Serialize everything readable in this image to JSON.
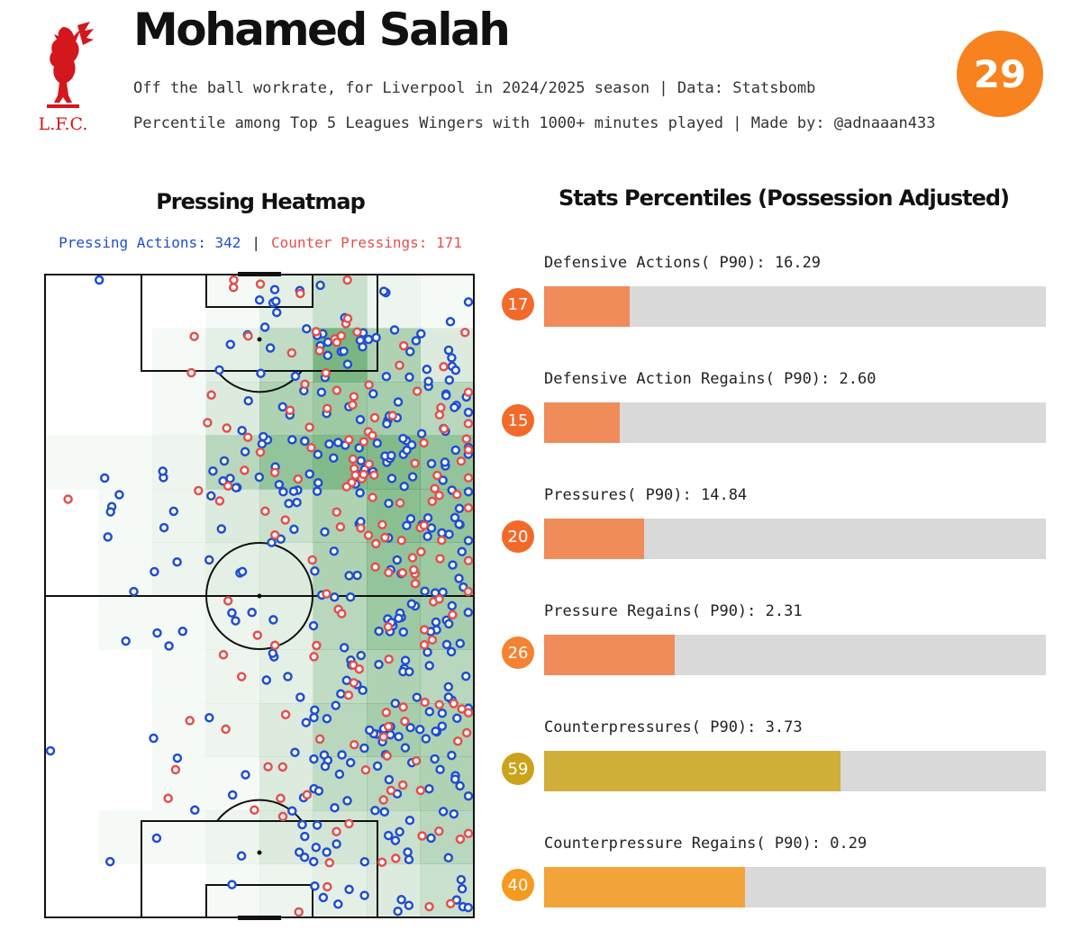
{
  "header": {
    "club_crest_text": "L.F.C.",
    "player_name": "Mohamed Salah",
    "subtitle_1": "Off the ball workrate, for Liverpool in 2024/2025 season | Data: Statsbomb",
    "subtitle_2": "Percentile among Top 5 Leagues Wingers with 1000+ minutes played | Made by: @adnaaan433",
    "overall_score": "29",
    "overall_color": "#f7821e"
  },
  "heatmap": {
    "title": "Pressing Heatmap",
    "legend_pressing": "Pressing Actions: 342",
    "legend_separator": "|",
    "legend_counter": "Counter Pressings: 171",
    "pressing_color": "#1f4fd0",
    "counter_color": "#e2504e",
    "heat_color": "#2e8b3a"
  },
  "stats": {
    "title": "Stats Percentiles (Possession Adjusted)",
    "items": [
      {
        "label": "Defensive Actions( P90): 16.29",
        "percentile": 17,
        "percentile_text": "17",
        "bar_color": "#f08c5a",
        "badge_color": "#f26a2a"
      },
      {
        "label": "Defensive Action Regains( P90): 2.60",
        "percentile": 15,
        "percentile_text": "15",
        "bar_color": "#f08c5a",
        "badge_color": "#f26a2a"
      },
      {
        "label": "Pressures( P90): 14.84",
        "percentile": 20,
        "percentile_text": "20",
        "bar_color": "#f08c5a",
        "badge_color": "#f26a2a"
      },
      {
        "label": "Pressure Regains( P90): 2.31",
        "percentile": 26,
        "percentile_text": "26",
        "bar_color": "#f08c5a",
        "badge_color": "#f48230"
      },
      {
        "label": "Counterpressures( P90): 3.73",
        "percentile": 59,
        "percentile_text": "59",
        "bar_color": "#cfae3a",
        "badge_color": "#caa31a"
      },
      {
        "label": "Counterpressure Regains( P90): 0.29",
        "percentile": 40,
        "percentile_text": "40",
        "bar_color": "#f2a43a",
        "badge_color": "#f59a1e"
      }
    ]
  },
  "chart_data": [
    {
      "type": "bar",
      "orientation": "horizontal",
      "title": "Stats Percentiles (Possession Adjusted)",
      "categories": [
        "Defensive Actions( P90)",
        "Defensive Action Regains( P90)",
        "Pressures( P90)",
        "Pressure Regains( P90)",
        "Counterpressures( P90)",
        "Counterpressure Regains( P90)"
      ],
      "raw_values": [
        16.29,
        2.6,
        14.84,
        2.31,
        3.73,
        0.29
      ],
      "values": [
        17,
        15,
        20,
        26,
        59,
        40
      ],
      "xlim": [
        0,
        100
      ]
    },
    {
      "type": "heatmap",
      "title": "Pressing Heatmap",
      "description_axes": "pitch length 0-120 (bottom to top), width 0-80 (left to right)",
      "series": [
        {
          "name": "Pressing Actions",
          "count": 342
        },
        {
          "name": "Counter Pressings",
          "count": 171
        }
      ],
      "grid_cols": 8,
      "grid_rows": 12,
      "intensity": [
        [
          0.0,
          0.0,
          0.0,
          0.05,
          0.15,
          0.3,
          0.1,
          0.05
        ],
        [
          0.0,
          0.0,
          0.05,
          0.15,
          0.35,
          0.75,
          0.45,
          0.2
        ],
        [
          0.0,
          0.0,
          0.05,
          0.2,
          0.45,
          0.55,
          0.5,
          0.4
        ],
        [
          0.05,
          0.05,
          0.1,
          0.4,
          0.6,
          0.7,
          0.7,
          0.6
        ],
        [
          0.0,
          0.05,
          0.1,
          0.2,
          0.3,
          0.45,
          0.65,
          0.6
        ],
        [
          0.0,
          0.05,
          0.1,
          0.15,
          0.2,
          0.45,
          0.6,
          0.55
        ],
        [
          0.0,
          0.05,
          0.05,
          0.1,
          0.15,
          0.4,
          0.55,
          0.5
        ],
        [
          0.0,
          0.0,
          0.05,
          0.1,
          0.15,
          0.35,
          0.45,
          0.4
        ],
        [
          0.0,
          0.0,
          0.05,
          0.1,
          0.2,
          0.4,
          0.5,
          0.45
        ],
        [
          0.0,
          0.0,
          0.05,
          0.05,
          0.2,
          0.35,
          0.4,
          0.45
        ],
        [
          0.0,
          0.05,
          0.05,
          0.1,
          0.2,
          0.25,
          0.3,
          0.4
        ],
        [
          0.0,
          0.0,
          0.0,
          0.05,
          0.1,
          0.15,
          0.2,
          0.3
        ]
      ]
    }
  ]
}
